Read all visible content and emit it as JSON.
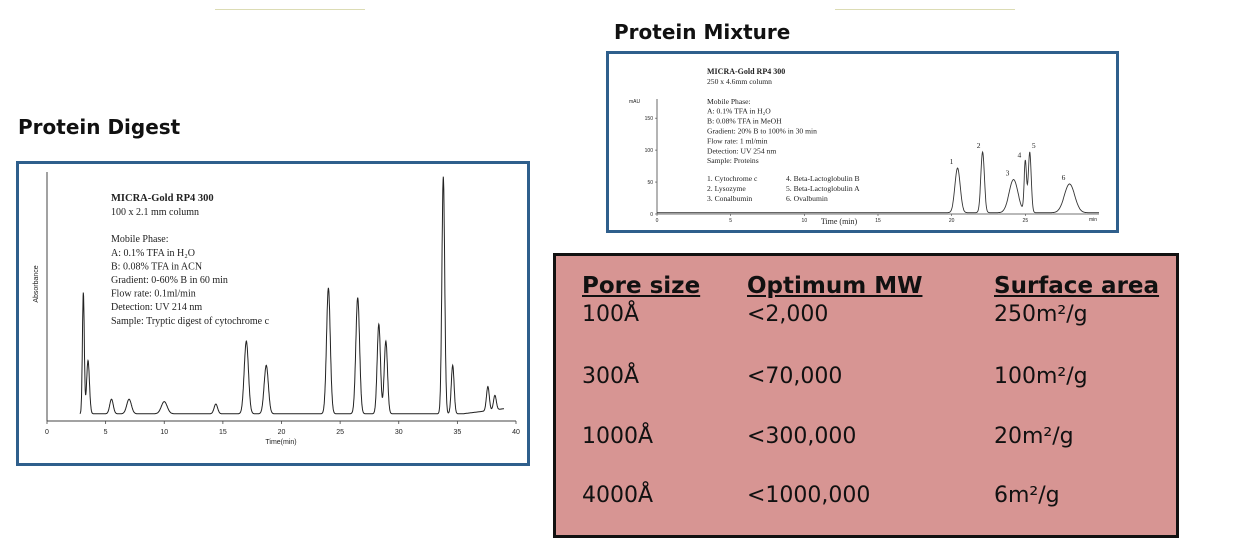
{
  "headings": {
    "mixture": "Protein Mixture",
    "digest": "Protein Digest"
  },
  "digest_chart": {
    "title": "MICRA-Gold RP4 300",
    "lines": [
      "100 x 2.1 mm column",
      "",
      "Mobile Phase:",
      "A: 0.1% TFA in H₂O",
      "B: 0.08% TFA in ACN",
      "Gradient: 0-60% B in 60 min",
      "Flow rate: 0.1ml/min",
      "Detection: UV 214 nm",
      "Sample: Tryptic digest of cytochrome c"
    ],
    "xlabel": "Time(min)",
    "ylabel": "Absorbance",
    "xticks": [
      "0",
      "5",
      "10",
      "15",
      "20",
      "25",
      "30",
      "35",
      "40"
    ]
  },
  "mixture_chart": {
    "title": "MICRA-Gold RP4 300",
    "lines": [
      "250 x 4.6mm column",
      "",
      "Mobile Phase:",
      "A: 0.1% TFA in H₂O",
      "B: 0.08% TFA in MeOH",
      "Gradient: 20% B to 100% in 30 min",
      "Flow rate: 1 ml/min",
      "Detection: UV 254 nm",
      "Sample: Proteins"
    ],
    "proteins": [
      "1. Cytochrome c",
      "2. Lysozyme",
      "3. Conalbumin",
      "4. Beta-Lactoglobulin B",
      "5. Beta-Lactoglobulin A",
      "6. Ovalbumin"
    ],
    "yunit": "mAU",
    "yticks": [
      "150",
      "100",
      "50",
      "0"
    ],
    "xticks": [
      "0",
      "5",
      "10",
      "15",
      "20",
      "25"
    ],
    "xunit": "min",
    "xlabel": "Time (min)",
    "peak_labels": [
      "1",
      "2",
      "3",
      "4",
      "5",
      "6"
    ]
  },
  "chart_data": [
    {
      "type": "line",
      "name": "Protein Digest chromatogram",
      "xlabel": "Time(min)",
      "ylabel": "Absorbance",
      "xlim": [
        0,
        40
      ],
      "ylim": [
        0,
        1
      ],
      "baseline": 0.03,
      "peaks": [
        {
          "x": 3.1,
          "h": 0.5,
          "w": 0.08
        },
        {
          "x": 3.5,
          "h": 0.22,
          "w": 0.12
        },
        {
          "x": 5.5,
          "h": 0.06,
          "w": 0.15
        },
        {
          "x": 7.0,
          "h": 0.06,
          "w": 0.2
        },
        {
          "x": 10.0,
          "h": 0.05,
          "w": 0.25
        },
        {
          "x": 14.4,
          "h": 0.04,
          "w": 0.15
        },
        {
          "x": 17.0,
          "h": 0.3,
          "w": 0.18
        },
        {
          "x": 18.7,
          "h": 0.2,
          "w": 0.18
        },
        {
          "x": 24.0,
          "h": 0.52,
          "w": 0.16
        },
        {
          "x": 26.5,
          "h": 0.48,
          "w": 0.16
        },
        {
          "x": 28.3,
          "h": 0.37,
          "w": 0.14
        },
        {
          "x": 28.9,
          "h": 0.3,
          "w": 0.14
        },
        {
          "x": 33.8,
          "h": 0.98,
          "w": 0.12
        },
        {
          "x": 34.6,
          "h": 0.2,
          "w": 0.12
        },
        {
          "x": 37.6,
          "h": 0.1,
          "w": 0.12
        },
        {
          "x": 38.2,
          "h": 0.06,
          "w": 0.12
        }
      ]
    },
    {
      "type": "line",
      "name": "Protein Mixture chromatogram",
      "xlabel": "Time (min)",
      "ylabel": "mAU",
      "xlim": [
        0,
        30
      ],
      "ylim": [
        0,
        180
      ],
      "baseline": 2,
      "peaks": [
        {
          "x": 20.4,
          "h": 70,
          "w": 0.18,
          "label": "1"
        },
        {
          "x": 22.1,
          "h": 95,
          "w": 0.12,
          "label": "2"
        },
        {
          "x": 24.2,
          "h": 52,
          "w": 0.3,
          "label": "3"
        },
        {
          "x": 25.0,
          "h": 80,
          "w": 0.08,
          "label": "4"
        },
        {
          "x": 25.3,
          "h": 95,
          "w": 0.1,
          "label": "5"
        },
        {
          "x": 28.0,
          "h": 45,
          "w": 0.35,
          "label": "6"
        }
      ]
    }
  ],
  "pore_table": {
    "headers": [
      "Pore size",
      "Optimum MW",
      "Surface area"
    ],
    "rows": [
      [
        "100Å",
        "<2,000",
        "250m²/g"
      ],
      [
        "300Å",
        "<70,000",
        "100m²/g"
      ],
      [
        "1000Å",
        "<300,000",
        "20m²/g"
      ],
      [
        "4000Å",
        "<1000,000",
        "6m²/g"
      ]
    ]
  },
  "colors": {
    "frame_border": "#2f5f8c",
    "table_fill": "#d79593",
    "table_border": "#111111"
  }
}
